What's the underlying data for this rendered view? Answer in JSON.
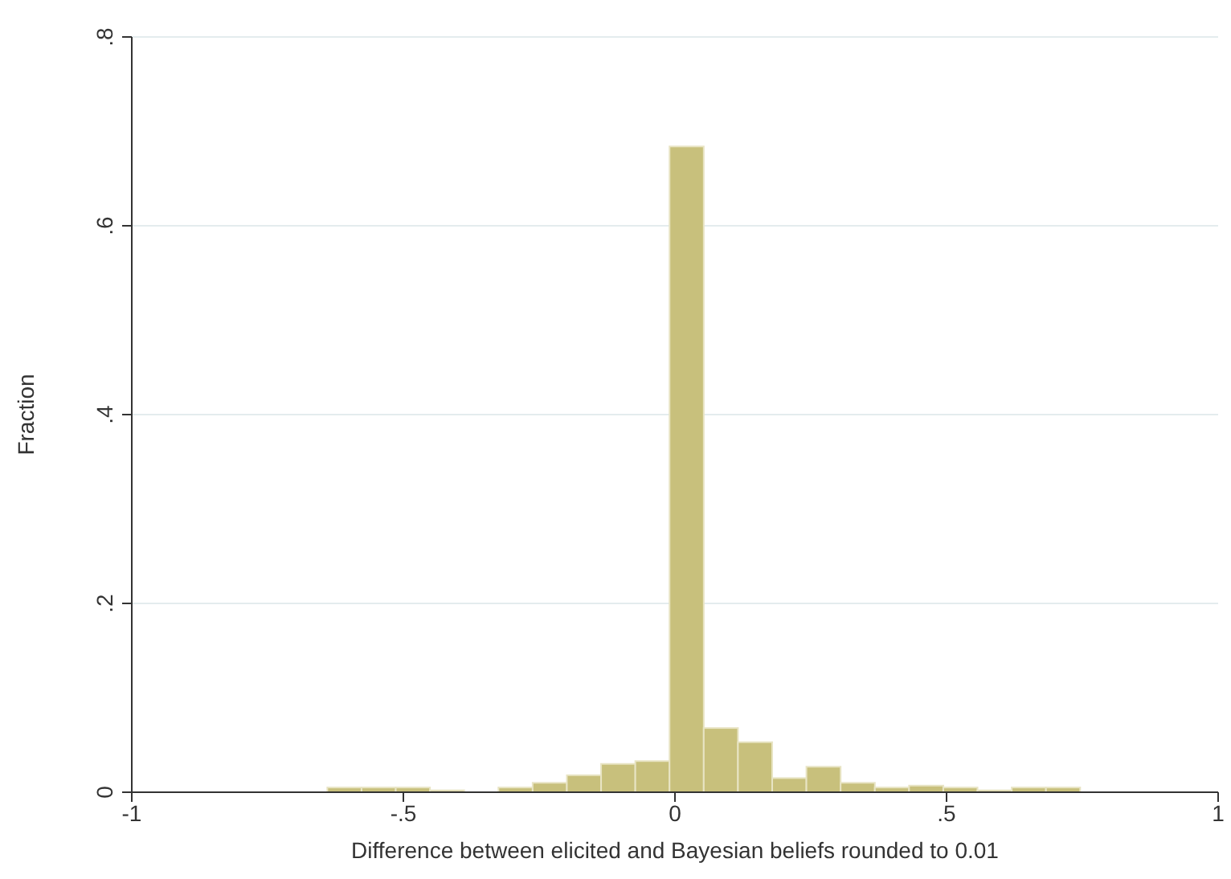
{
  "chart_data": {
    "type": "histogram",
    "xlabel": "Difference between elicited and Bayesian beliefs rounded to 0.01",
    "ylabel": "Fraction",
    "bins": [
      -0.64,
      -0.577,
      -0.514,
      -0.451,
      -0.388,
      -0.325,
      -0.262,
      -0.199,
      -0.136,
      -0.073,
      -0.01,
      0.053,
      0.116,
      0.179,
      0.242,
      0.305,
      0.368,
      0.431,
      0.494,
      0.557,
      0.62,
      0.683,
      0.746
    ],
    "values": [
      0.005,
      0.005,
      0.005,
      0.002,
      0,
      0.005,
      0.01,
      0.018,
      0.03,
      0.033,
      0.684,
      0.068,
      0.053,
      0.015,
      0.027,
      0.01,
      0.005,
      0.007,
      0.005,
      0.002,
      0.005,
      0.005
    ],
    "color": "#c8c07c",
    "xlim": [
      -1,
      1
    ],
    "xticks": [
      -1,
      {
        "value": -0.5,
        "label": "-.5"
      },
      0,
      {
        "value": 0.5,
        "label": ".5"
      },
      1
    ],
    "ylim": [
      0,
      0.8
    ],
    "yticks": [
      0,
      {
        "value": 0.2,
        "label": ".2"
      },
      {
        "value": 0.4,
        "label": ".4"
      },
      {
        "value": 0.6,
        "label": ".6"
      },
      {
        "value": 0.8,
        "label": ".8"
      }
    ],
    "grid": "y"
  }
}
